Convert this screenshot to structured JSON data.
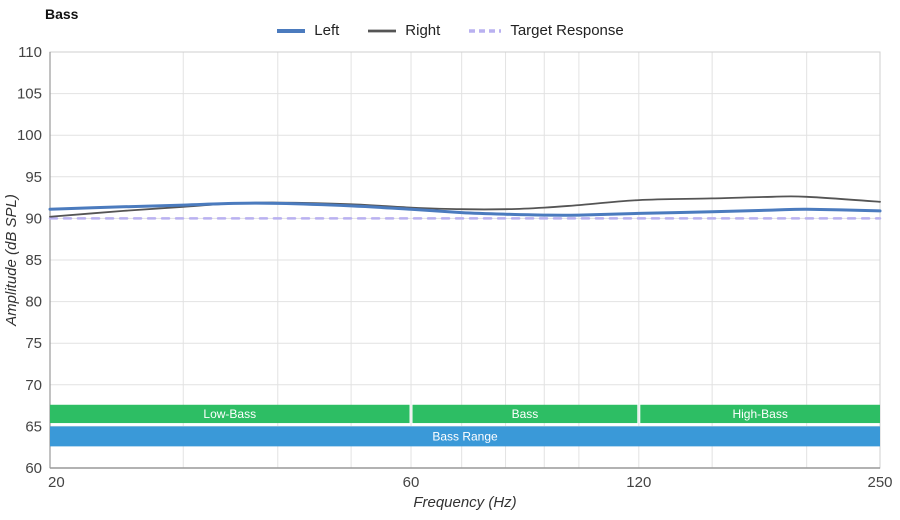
{
  "chart_data": {
    "type": "line",
    "title": "Bass",
    "xlabel": "Frequency (Hz)",
    "ylabel": "Amplitude (dB SPL)",
    "x_scale": "log",
    "xlim": [
      20,
      250
    ],
    "ylim": [
      60,
      110
    ],
    "y_ticks": [
      60,
      65,
      70,
      75,
      80,
      85,
      90,
      95,
      100,
      105,
      110
    ],
    "x_ticks_labeled": [
      20,
      60,
      120,
      250
    ],
    "x_gridlines": [
      20,
      30,
      40,
      50,
      60,
      70,
      80,
      90,
      100,
      120,
      150,
      200,
      250
    ],
    "grid": true,
    "legend_position": "top-center",
    "x": [
      20,
      25,
      30,
      35,
      40,
      50,
      60,
      70,
      80,
      90,
      100,
      120,
      150,
      180,
      200,
      250
    ],
    "series": [
      {
        "name": "Left",
        "color": "#4b7bbe",
        "width": 3,
        "dash": null,
        "values": [
          91.1,
          91.4,
          91.6,
          91.8,
          91.8,
          91.5,
          91.1,
          90.7,
          90.5,
          90.4,
          90.4,
          90.6,
          90.8,
          91.0,
          91.1,
          90.9
        ]
      },
      {
        "name": "Right",
        "color": "#555555",
        "width": 1.8,
        "dash": null,
        "values": [
          90.2,
          90.9,
          91.4,
          91.8,
          91.9,
          91.7,
          91.3,
          91.1,
          91.1,
          91.3,
          91.6,
          92.2,
          92.4,
          92.6,
          92.6,
          92.0
        ]
      },
      {
        "name": "Target Response",
        "color": "#b9b1f0",
        "width": 2.5,
        "dash": "7 7",
        "values": [
          90,
          90,
          90,
          90,
          90,
          90,
          90,
          90,
          90,
          90,
          90,
          90,
          90,
          90,
          90,
          90
        ]
      }
    ],
    "bands": [
      {
        "label": "Low-Bass",
        "from": 20,
        "to": 60,
        "y_top": 67.6,
        "y_bottom": 65.4,
        "color": "#2dbe64",
        "text_color": "#ffffff"
      },
      {
        "label": "Bass",
        "from": 60,
        "to": 120,
        "y_top": 67.6,
        "y_bottom": 65.4,
        "color": "#2dbe64",
        "text_color": "#ffffff"
      },
      {
        "label": "High-Bass",
        "from": 120,
        "to": 250,
        "y_top": 67.6,
        "y_bottom": 65.4,
        "color": "#2dbe64",
        "text_color": "#ffffff"
      },
      {
        "label": "Bass Range",
        "from": 20,
        "to": 250,
        "y_top": 65.0,
        "y_bottom": 62.6,
        "color": "#3a99d8",
        "text_color": "#ffffff"
      }
    ],
    "colors": {
      "grid": "#e2e2e2",
      "frame": "#cfcfcf",
      "axis": "#999999",
      "tick_text": "#444444",
      "axis_title_text": "#333333"
    }
  }
}
